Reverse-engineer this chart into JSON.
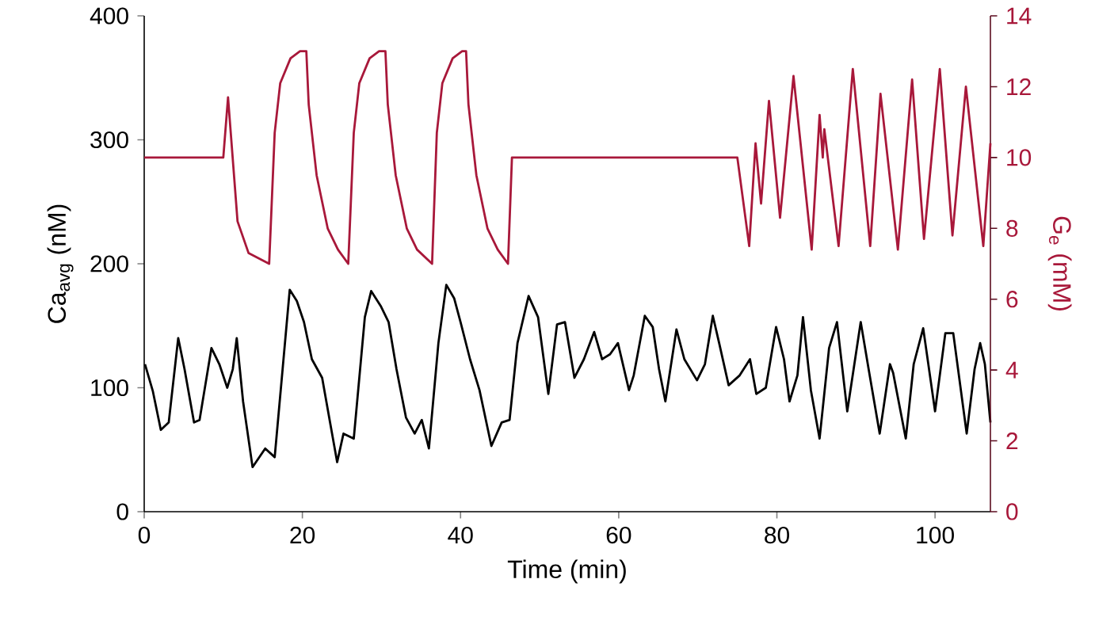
{
  "chart_data": {
    "type": "line",
    "xlabel": "Time (min)",
    "ylabel": "Ca$_{avg}$ (nM)",
    "y2label": "G$_{e}$ (mM)",
    "xlim": [
      0,
      107
    ],
    "xticks": [
      0,
      20,
      40,
      60,
      80,
      100
    ],
    "ylim": [
      0,
      400
    ],
    "yticks": [
      0,
      100,
      200,
      300,
      400
    ],
    "y2lim": [
      0,
      14
    ],
    "y2ticks": [
      0,
      2,
      4,
      6,
      8,
      10,
      12,
      14
    ],
    "series": [
      {
        "color": "#000000",
        "x": [
          0.1,
          1.1,
          2.1,
          3.1,
          4.3,
          5.1,
          6.3,
          7.0,
          8.5,
          9.5,
          10.5,
          11.2,
          11.7,
          12.5,
          13.7,
          15.3,
          16.5,
          17.5,
          18.4,
          19.3,
          20.2,
          21.2,
          22.5,
          23.5,
          24.4,
          25.2,
          26.5,
          27.9,
          28.7,
          29.9,
          30.9,
          31.9,
          33.1,
          34.2,
          35.1,
          36.0,
          37.2,
          38.2,
          39.2,
          40.0,
          41.2,
          42.4,
          43.9,
          45.2,
          46.2,
          47.2,
          48.6,
          49.8,
          51.1,
          52.2,
          53.2,
          54.4,
          55.6,
          56.9,
          57.9,
          58.9,
          59.9,
          61.3,
          61.9,
          63.3,
          64.3,
          65.1,
          65.9,
          67.3,
          68.3,
          69.9,
          70.9,
          71.9,
          72.7,
          73.9,
          75.3,
          76.6,
          77.4,
          78.6,
          79.9,
          80.9,
          81.6,
          82.6,
          83.3,
          84.3,
          85.4,
          86.6,
          87.6,
          88.9,
          90.6,
          91.6,
          93.0,
          94.3,
          94.7,
          96.3,
          97.3,
          98.5,
          100.0,
          101.3,
          102.3,
          104.0,
          105.0,
          105.7,
          106.3,
          107.0
        ],
        "values": [
          119,
          97,
          66,
          72,
          140,
          115,
          72,
          74,
          132,
          119,
          100,
          115,
          140,
          89,
          36,
          51,
          44,
          115,
          179,
          170,
          153,
          123,
          108,
          72,
          40,
          63,
          59,
          157,
          178,
          166,
          153,
          115,
          76,
          63,
          74,
          51,
          136,
          183,
          172,
          153,
          123,
          98,
          53,
          72,
          74,
          136,
          174,
          157,
          95,
          151,
          153,
          108,
          123,
          145,
          123,
          127,
          136,
          98,
          110,
          158,
          149,
          115,
          89,
          147,
          123,
          106,
          119,
          158,
          136,
          102,
          110,
          123,
          95,
          100,
          149,
          123,
          89,
          110,
          157,
          98,
          59,
          132,
          153,
          81,
          153,
          115,
          63,
          119,
          112,
          59,
          119,
          148,
          81,
          144,
          144,
          63,
          115,
          136,
          119,
          72
        ]
      },
      {
        "color": "#a8183a",
        "axis": "y2",
        "x": [
          0,
          10.0,
          10.6,
          11.8,
          13.2,
          15.8,
          16.5,
          17.2,
          18.5,
          19.7,
          20.5,
          20.8,
          21.8,
          23.2,
          24.5,
          25.8,
          26.5,
          27.2,
          28.5,
          29.7,
          30.5,
          30.8,
          31.8,
          33.2,
          34.5,
          36.4,
          37.0,
          37.7,
          39.0,
          40.2,
          40.7,
          41.0,
          42.0,
          43.4,
          44.7,
          46.0,
          46.5,
          75.0,
          76.5,
          77.3,
          78.0,
          79.0,
          80.4,
          82.1,
          84.4,
          85.4,
          85.8,
          86.0,
          87.8,
          89.6,
          91.8,
          93.1,
          95.3,
          97.1,
          98.6,
          100.6,
          102.2,
          103.9,
          106.1,
          107.0
        ],
        "values": [
          10,
          10,
          11.7,
          8.2,
          7.3,
          7.0,
          10.7,
          12.1,
          12.8,
          13,
          13,
          11.5,
          9.5,
          8.0,
          7.4,
          7.0,
          10.7,
          12.1,
          12.8,
          13,
          13,
          11.5,
          9.5,
          8.0,
          7.4,
          7.0,
          10.7,
          12.1,
          12.8,
          13,
          13,
          11.5,
          9.5,
          8.0,
          7.4,
          7.0,
          10,
          10,
          7.5,
          10.4,
          8.7,
          11.6,
          8.3,
          12.3,
          7.4,
          11.2,
          10.0,
          10.8,
          7.5,
          12.5,
          7.5,
          11.8,
          7.4,
          12.2,
          7.7,
          12.5,
          7.8,
          12.0,
          7.5,
          10.4
        ]
      }
    ]
  }
}
